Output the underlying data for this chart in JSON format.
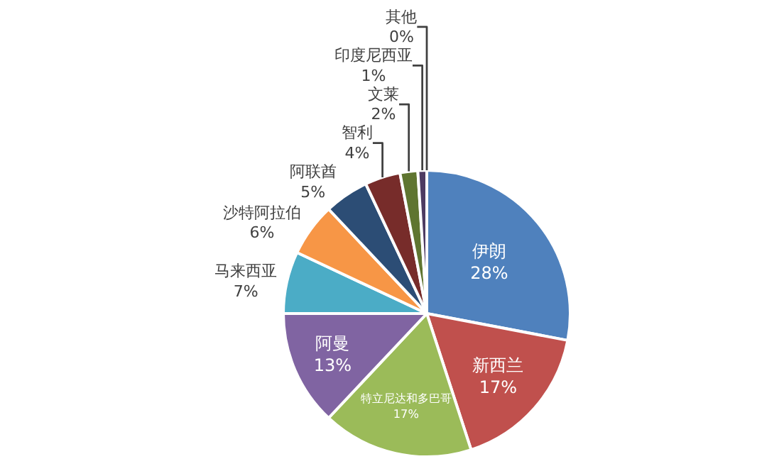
{
  "chart_data": {
    "type": "pie",
    "categories": [
      "伊朗",
      "新西兰",
      "特立尼达和多巴哥",
      "阿曼",
      "马来西亚",
      "沙特阿拉伯",
      "阿联酋",
      "智利",
      "文莱",
      "印度尼西亚",
      "其他"
    ],
    "values": [
      28,
      17,
      17,
      13,
      7,
      6,
      5,
      4,
      2,
      1,
      0
    ],
    "value_labels": [
      "28%",
      "17%",
      "17%",
      "13%",
      "7%",
      "6%",
      "5%",
      "4%",
      "2%",
      "1%",
      "0%"
    ],
    "colors": [
      "#4f81bd",
      "#c0504d",
      "#9bbb59",
      "#8064a2",
      "#4bacc6",
      "#f79646",
      "#2c4d75",
      "#772c2a",
      "#5f7530",
      "#4d3b62",
      "#276a7c"
    ],
    "legend": false
  }
}
